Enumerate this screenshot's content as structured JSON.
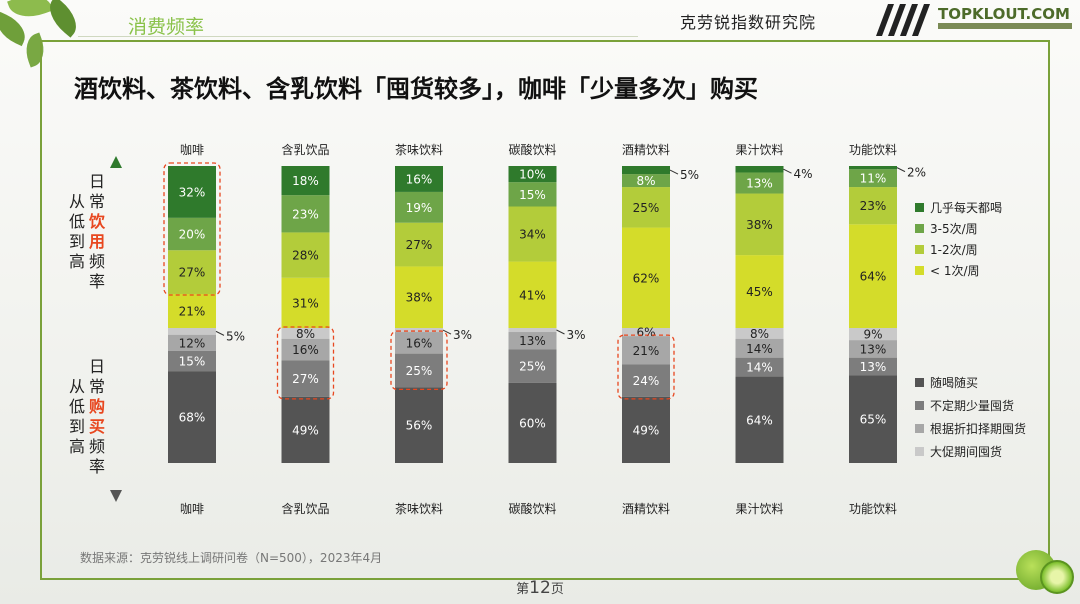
{
  "header": {
    "section_label": "消费频率",
    "org_name": "克劳锐指数研究院",
    "logo_text": "TOPKLOUT.COM"
  },
  "title": "酒饮料、茶饮料、含乳饮料「囤货较多」，咖啡「少量多次」购买",
  "footer": {
    "source": "数据来源：克劳锐线上调研问卷（N=500），2023年4月",
    "page_prefix": "第",
    "page_number": "12",
    "page_suffix": "页"
  },
  "axis_labels": {
    "upper_lines": [
      "日",
      "常",
      "饮",
      "用",
      "频",
      "率"
    ],
    "upper_prefix": [
      "从",
      "低",
      "到",
      "高"
    ],
    "lower_lines": [
      "日",
      "常",
      "购",
      "买",
      "频",
      "率"
    ],
    "lower_prefix": [
      "从",
      "低",
      "到",
      "高"
    ],
    "accent_color": "#e8471f"
  },
  "chart_data": [
    {
      "type": "bar",
      "stacked": true,
      "categories": [
        "咖啡",
        "含乳饮品",
        "茶味饮料",
        "碳酸饮料",
        "酒精饮料",
        "果汁饮料",
        "功能饮料"
      ],
      "series": [
        {
          "name": "< 1次/周",
          "color": "#d4dc2a",
          "values": [
            21,
            31,
            38,
            41,
            62,
            45,
            64
          ]
        },
        {
          "name": "1-2次/周",
          "color": "#b3cc3a",
          "values": [
            27,
            28,
            27,
            34,
            25,
            38,
            23
          ]
        },
        {
          "name": "3-5次/周",
          "color": "#6ea548",
          "values": [
            20,
            23,
            19,
            15,
            8,
            13,
            11
          ]
        },
        {
          "name": "几乎每天都喝",
          "color": "#2f7a2c",
          "values": [
            32,
            18,
            16,
            10,
            5,
            4,
            2
          ]
        }
      ],
      "highlight": [
        true,
        false,
        false,
        false,
        false,
        false,
        false
      ]
    },
    {
      "type": "bar",
      "stacked": true,
      "categories": [
        "咖啡",
        "含乳饮品",
        "茶味饮料",
        "碳酸饮料",
        "酒精饮料",
        "果汁饮料",
        "功能饮料"
      ],
      "series": [
        {
          "name": "大促期间囤货",
          "color": "#c9c9c9",
          "values": [
            5,
            8,
            3,
            3,
            6,
            8,
            9
          ]
        },
        {
          "name": "根据折扣择期囤货",
          "color": "#a7a7a7",
          "values": [
            12,
            16,
            16,
            13,
            21,
            14,
            13
          ]
        },
        {
          "name": "不定期少量囤货",
          "color": "#7d7d7d",
          "values": [
            15,
            27,
            25,
            25,
            24,
            14,
            13
          ]
        },
        {
          "name": "随喝随买",
          "color": "#545454",
          "values": [
            68,
            49,
            56,
            60,
            49,
            64,
            65
          ]
        }
      ],
      "highlight": [
        false,
        true,
        true,
        false,
        true,
        false,
        false
      ]
    }
  ],
  "legend_upper": [
    "几乎每天都喝",
    "3-5次/周",
    "1-2次/周",
    "< 1次/周"
  ],
  "legend_upper_colors": [
    "#2f7a2c",
    "#6ea548",
    "#b3cc3a",
    "#d4dc2a"
  ],
  "legend_lower": [
    "随喝随买",
    "不定期少量囤货",
    "根据折扣择期囤货",
    "大促期间囤货"
  ],
  "legend_lower_colors": [
    "#545454",
    "#7d7d7d",
    "#a7a7a7",
    "#c9c9c9"
  ],
  "colors": {
    "frame": "#7aa13a",
    "highlight_box": "#e8471f",
    "arrow_top": "#2f7a2c",
    "arrow_bottom": "#555555"
  }
}
